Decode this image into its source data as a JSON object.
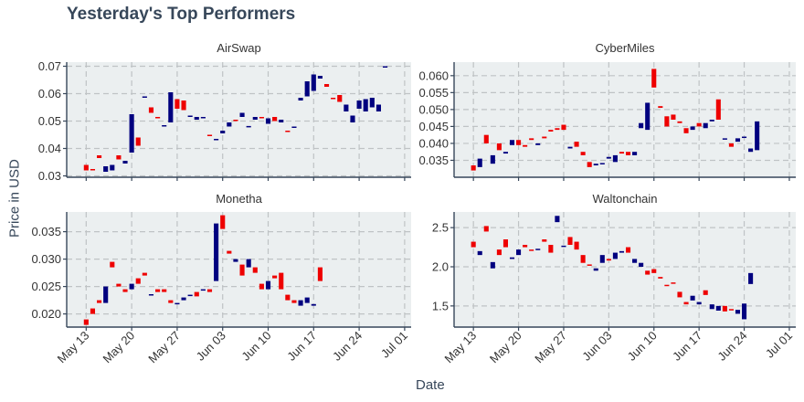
{
  "title": "Yesterday's Top Performers",
  "xlabel": "Date",
  "ylabel": "Price in USD",
  "colors": {
    "up": "#00007f",
    "down": "#ee0000",
    "panel": "#ebeff0",
    "grid": "#bfc3c5",
    "axis": "#37475a"
  },
  "x_ticks": [
    "May 13",
    "May 20",
    "May 27",
    "Jun 03",
    "Jun 10",
    "Jun 17",
    "Jun 24",
    "Jul 01"
  ],
  "chart_data": [
    {
      "type": "candlestick",
      "title": "AirSwap",
      "x_range": [
        0,
        53
      ],
      "ylim": [
        0.0295,
        0.0715
      ],
      "y_ticks": [
        0.03,
        0.04,
        0.05,
        0.06,
        0.07
      ],
      "y_tick_labels": [
        "0.03",
        "0.04",
        "0.05",
        "0.06",
        "0.07"
      ],
      "candles": [
        [
          0.034,
          0.032
        ],
        [
          0.0325,
          0.032
        ],
        [
          0.0375,
          0.0365
        ],
        [
          0.0315,
          0.0335
        ],
        [
          0.032,
          0.034
        ],
        [
          0.0375,
          0.036
        ],
        [
          0.0345,
          0.0355
        ],
        [
          0.0385,
          0.0525
        ],
        [
          0.044,
          0.041
        ],
        [
          0.0585,
          0.059
        ],
        [
          0.055,
          0.053
        ],
        [
          0.0515,
          0.051
        ],
        [
          0.048,
          0.0485
        ],
        [
          0.0495,
          0.0605
        ],
        [
          0.058,
          0.0545
        ],
        [
          0.0575,
          0.054
        ],
        [
          0.052,
          0.052
        ],
        [
          0.0505,
          0.0515
        ],
        [
          0.0515,
          0.0515
        ],
        [
          0.045,
          0.0448
        ],
        [
          0.043,
          0.0435
        ],
        [
          0.0455,
          0.0465
        ],
        [
          0.048,
          0.0495
        ],
        [
          0.0505,
          0.05
        ],
        [
          0.0515,
          0.053
        ],
        [
          0.048,
          0.0482
        ],
        [
          0.0505,
          0.0515
        ],
        [
          0.0515,
          0.051
        ],
        [
          0.049,
          0.051
        ],
        [
          0.0515,
          0.05
        ],
        [
          0.0495,
          0.0505
        ],
        [
          0.0465,
          0.046
        ],
        [
          0.048,
          0.048
        ],
        [
          0.0575,
          0.0585
        ],
        [
          0.059,
          0.0645
        ],
        [
          0.061,
          0.067
        ],
        [
          0.0655,
          0.0665
        ],
        [
          0.0635,
          0.0625
        ],
        [
          0.0585,
          0.058
        ],
        [
          0.0595,
          0.057
        ],
        [
          0.0535,
          0.056
        ],
        [
          0.0495,
          0.052
        ],
        [
          0.0545,
          0.0575
        ],
        [
          0.0535,
          0.058
        ],
        [
          0.055,
          0.0585
        ],
        [
          0.0535,
          0.056
        ],
        [
          0.0695,
          0.07
        ]
      ]
    },
    {
      "type": "candlestick",
      "title": "CyberMiles",
      "x_range": [
        0,
        53
      ],
      "ylim": [
        0.03,
        0.064
      ],
      "y_ticks": [
        0.035,
        0.04,
        0.045,
        0.05,
        0.055,
        0.06
      ],
      "y_tick_labels": [
        "0.035",
        "0.040",
        "0.045",
        "0.050",
        "0.055",
        "0.060"
      ],
      "candles": [
        [
          0.0335,
          0.032
        ],
        [
          0.033,
          0.0355
        ],
        [
          0.0425,
          0.04
        ],
        [
          0.034,
          0.0365
        ],
        [
          0.04,
          0.038
        ],
        [
          0.037,
          0.0375
        ],
        [
          0.0395,
          0.041
        ],
        [
          0.041,
          0.0395
        ],
        [
          0.0395,
          0.039
        ],
        [
          0.0415,
          0.041
        ],
        [
          0.0395,
          0.04
        ],
        [
          0.042,
          0.0415
        ],
        [
          0.044,
          0.0435
        ],
        [
          0.0445,
          0.044
        ],
        [
          0.0455,
          0.044
        ],
        [
          0.0385,
          0.039
        ],
        [
          0.0405,
          0.039
        ],
        [
          0.0375,
          0.0365
        ],
        [
          0.0345,
          0.033
        ],
        [
          0.0335,
          0.034
        ],
        [
          0.034,
          0.0342
        ],
        [
          0.0355,
          0.036
        ],
        [
          0.0345,
          0.0365
        ],
        [
          0.0375,
          0.037
        ],
        [
          0.0375,
          0.0365
        ],
        [
          0.0365,
          0.0375
        ],
        [
          0.0445,
          0.046
        ],
        [
          0.044,
          0.052
        ],
        [
          0.062,
          0.0565
        ],
        [
          0.051,
          0.0505
        ],
        [
          0.048,
          0.045
        ],
        [
          0.0485,
          0.047
        ],
        [
          0.0465,
          0.046
        ],
        [
          0.0445,
          0.043
        ],
        [
          0.044,
          0.045
        ],
        [
          0.046,
          0.045
        ],
        [
          0.0445,
          0.046
        ],
        [
          0.0465,
          0.047
        ],
        [
          0.053,
          0.047
        ],
        [
          0.0415,
          0.0415
        ],
        [
          0.04,
          0.039
        ],
        [
          0.0405,
          0.0415
        ],
        [
          0.042,
          0.042
        ],
        [
          0.0375,
          0.0385
        ],
        [
          0.038,
          0.0465
        ]
      ]
    },
    {
      "type": "candlestick",
      "title": "Monetha",
      "x_range": [
        0,
        53
      ],
      "ylim": [
        0.0176,
        0.0386
      ],
      "y_ticks": [
        0.02,
        0.025,
        0.03,
        0.035
      ],
      "y_tick_labels": [
        "0.020",
        "0.025",
        "0.030",
        "0.035"
      ],
      "candles": [
        [
          0.019,
          0.018
        ],
        [
          0.021,
          0.02
        ],
        [
          0.0225,
          0.022
        ],
        [
          0.022,
          0.025
        ],
        [
          0.0295,
          0.0285
        ],
        [
          0.0255,
          0.025
        ],
        [
          0.0245,
          0.024
        ],
        [
          0.0245,
          0.0255
        ],
        [
          0.0265,
          0.0255
        ],
        [
          0.0275,
          0.027
        ],
        [
          0.0235,
          0.0236
        ],
        [
          0.0245,
          0.024
        ],
        [
          0.0245,
          0.024
        ],
        [
          0.0225,
          0.022
        ],
        [
          0.022,
          0.022
        ],
        [
          0.0225,
          0.023
        ],
        [
          0.0235,
          0.0235
        ],
        [
          0.024,
          0.0232
        ],
        [
          0.0245,
          0.0245
        ],
        [
          0.0245,
          0.024
        ],
        [
          0.026,
          0.0365
        ],
        [
          0.038,
          0.0355
        ],
        [
          0.0315,
          0.031
        ],
        [
          0.0295,
          0.03
        ],
        [
          0.029,
          0.027
        ],
        [
          0.0285,
          0.03
        ],
        [
          0.0285,
          0.0275
        ],
        [
          0.0255,
          0.0245
        ],
        [
          0.0245,
          0.026
        ],
        [
          0.027,
          0.0265
        ],
        [
          0.0275,
          0.0245
        ],
        [
          0.0235,
          0.0225
        ],
        [
          0.0225,
          0.022
        ],
        [
          0.0215,
          0.0225
        ],
        [
          0.022,
          0.023
        ],
        [
          0.0215,
          0.0218
        ],
        [
          0.0285,
          0.026
        ]
      ]
    },
    {
      "type": "candlestick",
      "title": "Waltonchain",
      "x_range": [
        0,
        53
      ],
      "ylim": [
        1.23,
        2.7
      ],
      "y_ticks": [
        1.5,
        2.0,
        2.5
      ],
      "y_tick_labels": [
        "1.5",
        "2.0",
        "2.5"
      ],
      "candles": [
        [
          2.32,
          2.25
        ],
        [
          2.15,
          2.2
        ],
        [
          2.52,
          2.45
        ],
        [
          1.98,
          2.06
        ],
        [
          2.22,
          2.15
        ],
        [
          2.35,
          2.25
        ],
        [
          2.1,
          2.12
        ],
        [
          2.15,
          2.22
        ],
        [
          2.28,
          2.25
        ],
        [
          2.22,
          2.21
        ],
        [
          2.22,
          2.23
        ],
        [
          2.35,
          2.32
        ],
        [
          2.28,
          2.18
        ],
        [
          2.57,
          2.65
        ],
        [
          2.26,
          2.27
        ],
        [
          2.38,
          2.28
        ],
        [
          2.32,
          2.22
        ],
        [
          2.15,
          2.05
        ],
        [
          2.03,
          2.02
        ],
        [
          1.95,
          1.98
        ],
        [
          2.05,
          2.15
        ],
        [
          2.1,
          2.08
        ],
        [
          2.1,
          2.18
        ],
        [
          2.18,
          2.2
        ],
        [
          2.25,
          2.18
        ],
        [
          2.05,
          2.1
        ],
        [
          2.0,
          2.05
        ],
        [
          1.95,
          1.9
        ],
        [
          1.97,
          1.92
        ],
        [
          1.87,
          1.85
        ],
        [
          1.77,
          1.76
        ],
        [
          1.8,
          1.79
        ],
        [
          1.68,
          1.61
        ],
        [
          1.55,
          1.52
        ],
        [
          1.57,
          1.63
        ],
        [
          1.52,
          1.55
        ],
        [
          1.7,
          1.64
        ],
        [
          1.46,
          1.52
        ],
        [
          1.44,
          1.5
        ],
        [
          1.5,
          1.43
        ],
        [
          1.46,
          1.45
        ],
        [
          1.4,
          1.45
        ],
        [
          1.33,
          1.53
        ],
        [
          1.78,
          1.92
        ]
      ]
    }
  ]
}
